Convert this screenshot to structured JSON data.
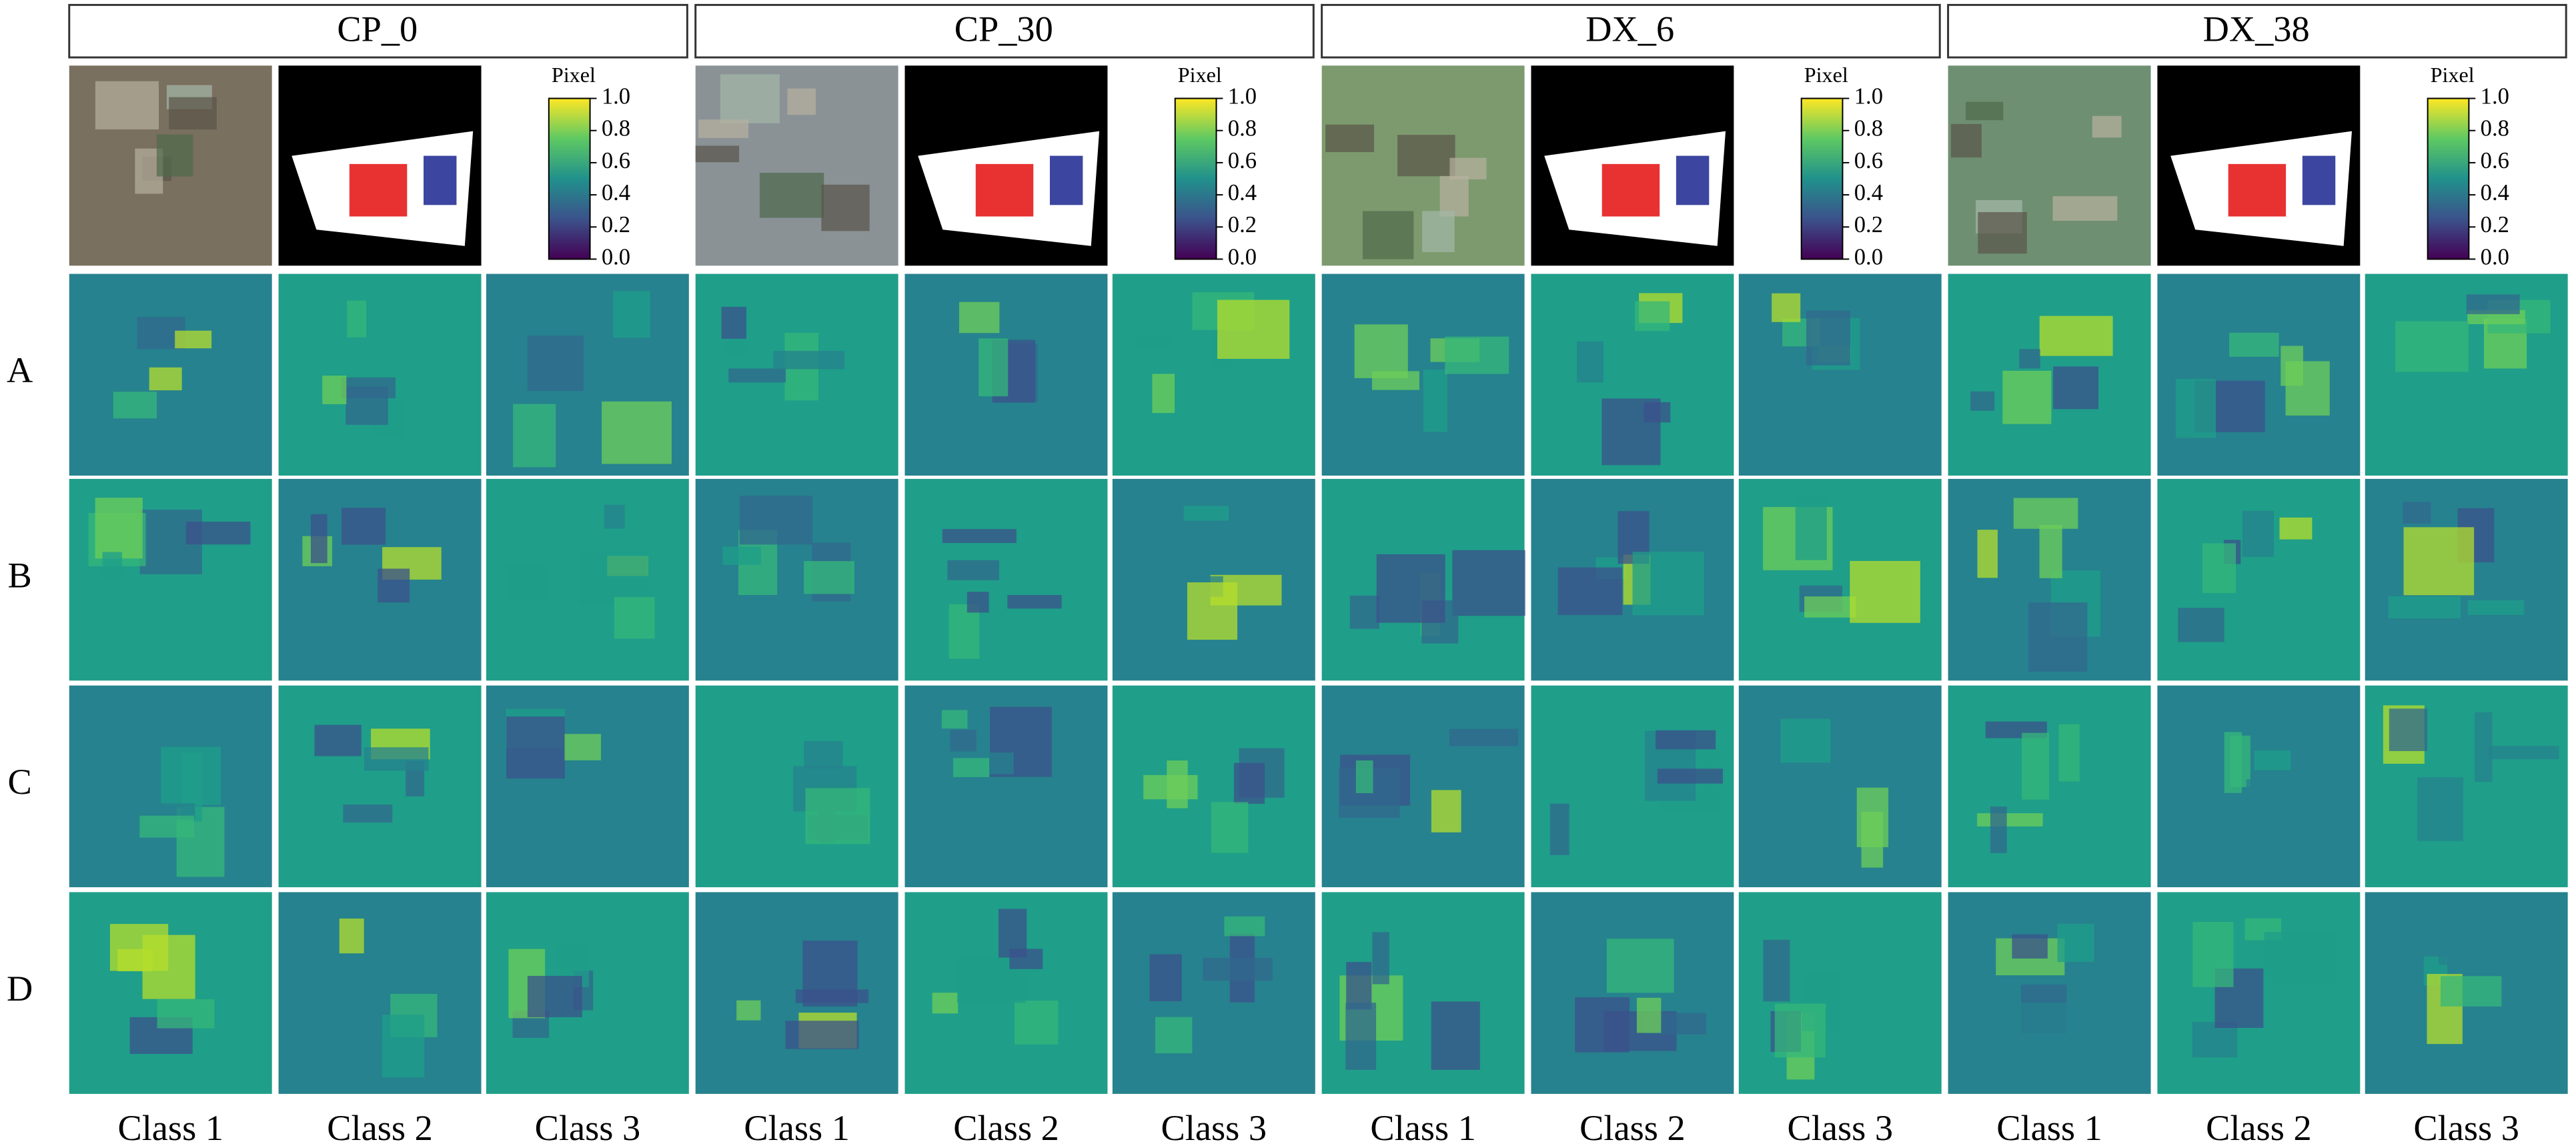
{
  "groups": [
    {
      "title": "CP_0"
    },
    {
      "title": "CP_30"
    },
    {
      "title": "DX_6"
    },
    {
      "title": "DX_38"
    }
  ],
  "colorbar": {
    "label": "Pixel",
    "ticks": [
      "1.0",
      "0.8",
      "0.6",
      "0.4",
      "0.2",
      "0.0"
    ]
  },
  "rows": [
    "A",
    "B",
    "C",
    "D"
  ],
  "columns": [
    "Class 1",
    "Class 2",
    "Class 3"
  ]
}
